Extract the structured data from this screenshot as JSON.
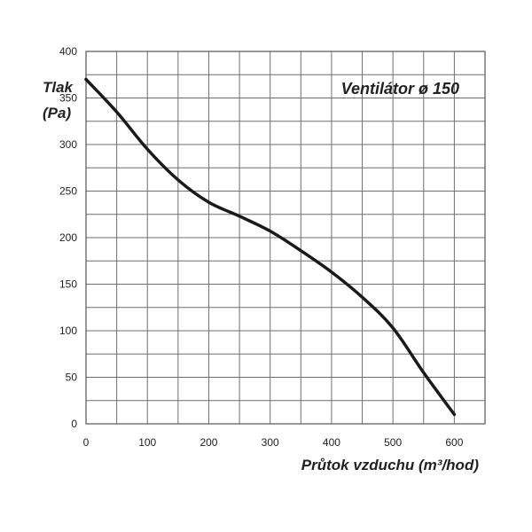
{
  "chart_data": {
    "type": "line",
    "title": "Ventilátor ø 150",
    "xlabel": "Průtok vzduchu (m³/hod)",
    "ylabel_line1": "Tlak",
    "ylabel_line2": "(Pa)",
    "xlim": [
      0,
      650
    ],
    "ylim": [
      0,
      400
    ],
    "x_ticks": [
      "0",
      "100",
      "200",
      "300",
      "400",
      "500",
      "600"
    ],
    "y_ticks": [
      "0",
      "50",
      "100",
      "150",
      "200",
      "250",
      "300",
      "350",
      "400"
    ],
    "grid": true,
    "series": [
      {
        "x": [
          0,
          50,
          100,
          150,
          200,
          250,
          300,
          350,
          400,
          450,
          500,
          550,
          600
        ],
        "y": [
          370,
          335,
          295,
          262,
          238,
          223,
          207,
          186,
          163,
          136,
          103,
          55,
          10
        ],
        "color": "#1a1a1a"
      }
    ],
    "colors": {
      "grid": "#6f6f6f",
      "curve": "#1a1a1a",
      "text": "#222222"
    }
  }
}
